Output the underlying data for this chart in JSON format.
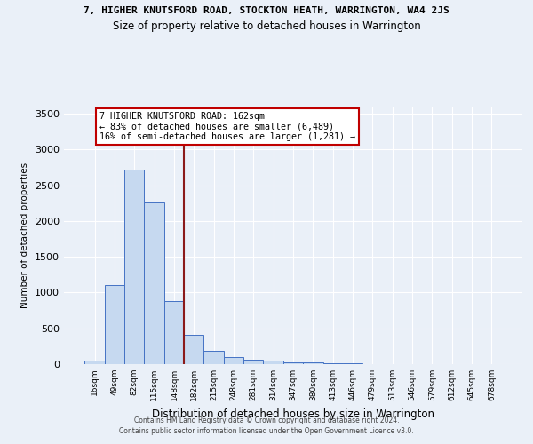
{
  "title": "7, HIGHER KNUTSFORD ROAD, STOCKTON HEATH, WARRINGTON, WA4 2JS",
  "subtitle": "Size of property relative to detached houses in Warrington",
  "xlabel": "Distribution of detached houses by size in Warrington",
  "ylabel": "Number of detached properties",
  "categories": [
    "16sqm",
    "49sqm",
    "82sqm",
    "115sqm",
    "148sqm",
    "182sqm",
    "215sqm",
    "248sqm",
    "281sqm",
    "314sqm",
    "347sqm",
    "380sqm",
    "413sqm",
    "446sqm",
    "479sqm",
    "513sqm",
    "546sqm",
    "579sqm",
    "612sqm",
    "645sqm",
    "678sqm"
  ],
  "values": [
    50,
    1100,
    2720,
    2260,
    880,
    415,
    185,
    105,
    65,
    45,
    30,
    20,
    15,
    10,
    5,
    5,
    3,
    2,
    2,
    1,
    1
  ],
  "bar_color": "#c6d9f0",
  "bar_edge_color": "#4472c4",
  "background_color": "#eaf0f8",
  "grid_color": "#ffffff",
  "vline_color": "#8b1a1a",
  "annotation_text": "7 HIGHER KNUTSFORD ROAD: 162sqm\n← 83% of detached houses are smaller (6,489)\n16% of semi-detached houses are larger (1,281) →",
  "annotation_box_color": "#ffffff",
  "annotation_box_edge": "#c00000",
  "ylim": [
    0,
    3600
  ],
  "yticks": [
    0,
    500,
    1000,
    1500,
    2000,
    2500,
    3000,
    3500
  ],
  "footer1": "Contains HM Land Registry data © Crown copyright and database right 2024.",
  "footer2": "Contains public sector information licensed under the Open Government Licence v3.0."
}
